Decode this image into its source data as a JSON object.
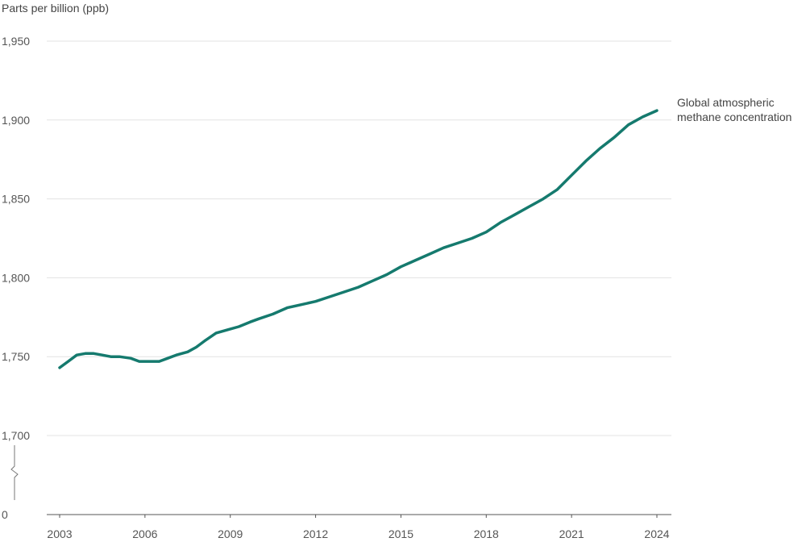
{
  "chart_data": {
    "type": "line",
    "ylabel": "Parts per billion (ppb)",
    "xlabel": "",
    "title": "",
    "y_axis_break": true,
    "y_ticks": [
      0,
      1700,
      1750,
      1800,
      1850,
      1900,
      1950
    ],
    "y_tick_labels": [
      "0",
      "1,700",
      "1,750",
      "1,800",
      "1,850",
      "1,900",
      "1,950"
    ],
    "ylim": [
      1700,
      1950
    ],
    "x_ticks": [
      2003,
      2006,
      2009,
      2012,
      2015,
      2018,
      2021,
      2024
    ],
    "x_tick_labels": [
      "2003",
      "2006",
      "2009",
      "2012",
      "2015",
      "2018",
      "2021",
      "2024"
    ],
    "xlim": [
      2003,
      2024
    ],
    "grid": "horizontal",
    "series": [
      {
        "name": "Global atmospheric methane concentration",
        "color": "#157a6e",
        "x": [
          2003.0,
          2003.3,
          2003.6,
          2003.9,
          2004.2,
          2004.5,
          2004.8,
          2005.1,
          2005.5,
          2005.8,
          2006.1,
          2006.5,
          2006.8,
          2007.1,
          2007.5,
          2007.8,
          2008.1,
          2008.5,
          2008.9,
          2009.3,
          2009.7,
          2010.0,
          2010.5,
          2011.0,
          2011.5,
          2012.0,
          2012.5,
          2013.0,
          2013.5,
          2014.0,
          2014.5,
          2015.0,
          2015.5,
          2016.0,
          2016.5,
          2017.0,
          2017.5,
          2018.0,
          2018.5,
          2019.0,
          2019.5,
          2020.0,
          2020.5,
          2021.0,
          2021.5,
          2022.0,
          2022.5,
          2023.0,
          2023.5,
          2024.0
        ],
        "values": [
          1743,
          1747,
          1751,
          1752,
          1752,
          1751,
          1750,
          1750,
          1749,
          1747,
          1747,
          1747,
          1749,
          1751,
          1753,
          1756,
          1760,
          1765,
          1767,
          1769,
          1772,
          1774,
          1777,
          1781,
          1783,
          1785,
          1788,
          1791,
          1794,
          1798,
          1802,
          1807,
          1811,
          1815,
          1819,
          1822,
          1825,
          1829,
          1835,
          1840,
          1845,
          1850,
          1856,
          1865,
          1874,
          1882,
          1889,
          1897,
          1902,
          1906
        ]
      }
    ],
    "legend": "direct label at line end (right)"
  }
}
